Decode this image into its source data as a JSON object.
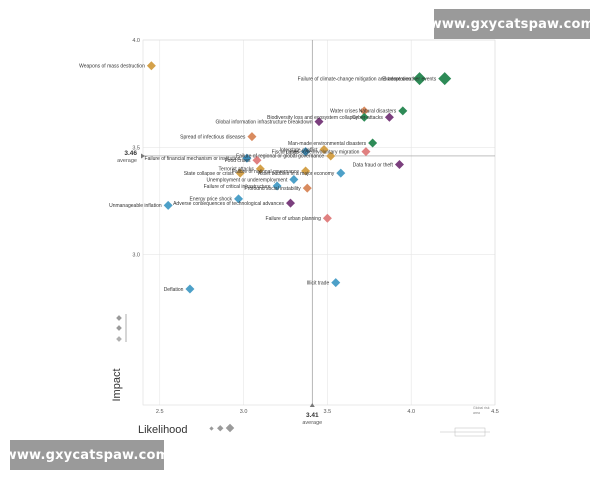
{
  "watermark": {
    "top_text": "www.gxycatspaw.com",
    "bottom_text": "www.gxycatspaw.com"
  },
  "chart_data": {
    "type": "scatter",
    "title": "",
    "xlabel": "Likelihood",
    "ylabel": "Impact",
    "xlim": [
      2.4,
      4.5
    ],
    "ylim": [
      2.3,
      4.0
    ],
    "x_ticks": [
      "2.5",
      "3.0",
      "3.5",
      "4.0",
      "4.5"
    ],
    "y_ticks": [
      "3.0",
      "3.5",
      "4.0"
    ],
    "average": {
      "x": {
        "value": "3.41",
        "label": "average"
      },
      "y": {
        "value": "3.46",
        "label": "average"
      }
    },
    "corner_note": {
      "line1": "Global risk",
      "line2": "area"
    },
    "grid": true,
    "colors": {
      "economic": "#3a8dba",
      "environmental": "#2e8b57",
      "geopolitical": "#d98b5f",
      "societal": "#c9a26b",
      "technological": "#7b3f7e",
      "cyan": "#4da0c8",
      "orange": "#d4a14a",
      "pink": "#e08080"
    },
    "points": [
      {
        "label": "Weapons of mass destruction",
        "x": 2.45,
        "y": 3.88,
        "category": "orange"
      },
      {
        "label": "Failure of climate-change mitigation and adaptation",
        "x": 4.05,
        "y": 3.82,
        "category": "environmental"
      },
      {
        "label": "Extreme weather events",
        "x": 4.2,
        "y": 3.82,
        "category": "environmental"
      },
      {
        "label": "Water crises",
        "x": 3.72,
        "y": 3.67,
        "category": "geopolitical"
      },
      {
        "label": "Natural disasters",
        "x": 3.95,
        "y": 3.67,
        "category": "environmental"
      },
      {
        "label": "Biodiversity loss and ecosystem collapse",
        "x": 3.72,
        "y": 3.64,
        "category": "environmental"
      },
      {
        "label": "Cyber-attacks",
        "x": 3.87,
        "y": 3.64,
        "category": "technological"
      },
      {
        "label": "Global information infrastructure breakdown",
        "x": 3.45,
        "y": 3.62,
        "category": "technological"
      },
      {
        "label": "Spread of infectious diseases",
        "x": 3.05,
        "y": 3.55,
        "category": "geopolitical"
      },
      {
        "label": "Man-made environmental disasters",
        "x": 3.77,
        "y": 3.52,
        "category": "environmental"
      },
      {
        "label": "Interstate conflict",
        "x": 3.48,
        "y": 3.49,
        "category": "orange"
      },
      {
        "label": "Large-scale involuntary migration",
        "x": 3.73,
        "y": 3.48,
        "category": "pink"
      },
      {
        "label": "Failure of financial mechanism or institution",
        "x": 3.02,
        "y": 3.45,
        "category": "economic"
      },
      {
        "label": "Fiscal crises",
        "x": 3.37,
        "y": 3.48,
        "category": "economic"
      },
      {
        "label": "Food crises",
        "x": 3.08,
        "y": 3.44,
        "category": "pink"
      },
      {
        "label": "Failure of regional or global governance",
        "x": 3.52,
        "y": 3.46,
        "category": "orange"
      },
      {
        "label": "Data fraud or theft",
        "x": 3.93,
        "y": 3.42,
        "category": "technological"
      },
      {
        "label": "Terrorist attacks",
        "x": 3.1,
        "y": 3.4,
        "category": "orange"
      },
      {
        "label": "Failure of national governance",
        "x": 3.37,
        "y": 3.39,
        "category": "orange"
      },
      {
        "label": "Asset bubbles in a major economy",
        "x": 3.58,
        "y": 3.38,
        "category": "cyan"
      },
      {
        "label": "State collapse or crisis",
        "x": 2.98,
        "y": 3.38,
        "category": "orange"
      },
      {
        "label": "Unemployment or underemployment",
        "x": 3.3,
        "y": 3.35,
        "category": "cyan"
      },
      {
        "label": "Failure of critical infrastructure",
        "x": 3.2,
        "y": 3.32,
        "category": "cyan"
      },
      {
        "label": "Profound social instability",
        "x": 3.38,
        "y": 3.31,
        "category": "geopolitical"
      },
      {
        "label": "Energy price shock",
        "x": 2.97,
        "y": 3.26,
        "category": "cyan"
      },
      {
        "label": "Unmanageable inflation",
        "x": 2.55,
        "y": 3.23,
        "category": "cyan"
      },
      {
        "label": "Adverse consequences of technological advances",
        "x": 3.28,
        "y": 3.24,
        "category": "technological"
      },
      {
        "label": "Failure of urban planning",
        "x": 3.5,
        "y": 3.17,
        "category": "pink"
      },
      {
        "label": "Illicit trade",
        "x": 3.55,
        "y": 2.87,
        "category": "cyan"
      },
      {
        "label": "Deflation",
        "x": 2.68,
        "y": 2.84,
        "category": "cyan"
      }
    ]
  }
}
